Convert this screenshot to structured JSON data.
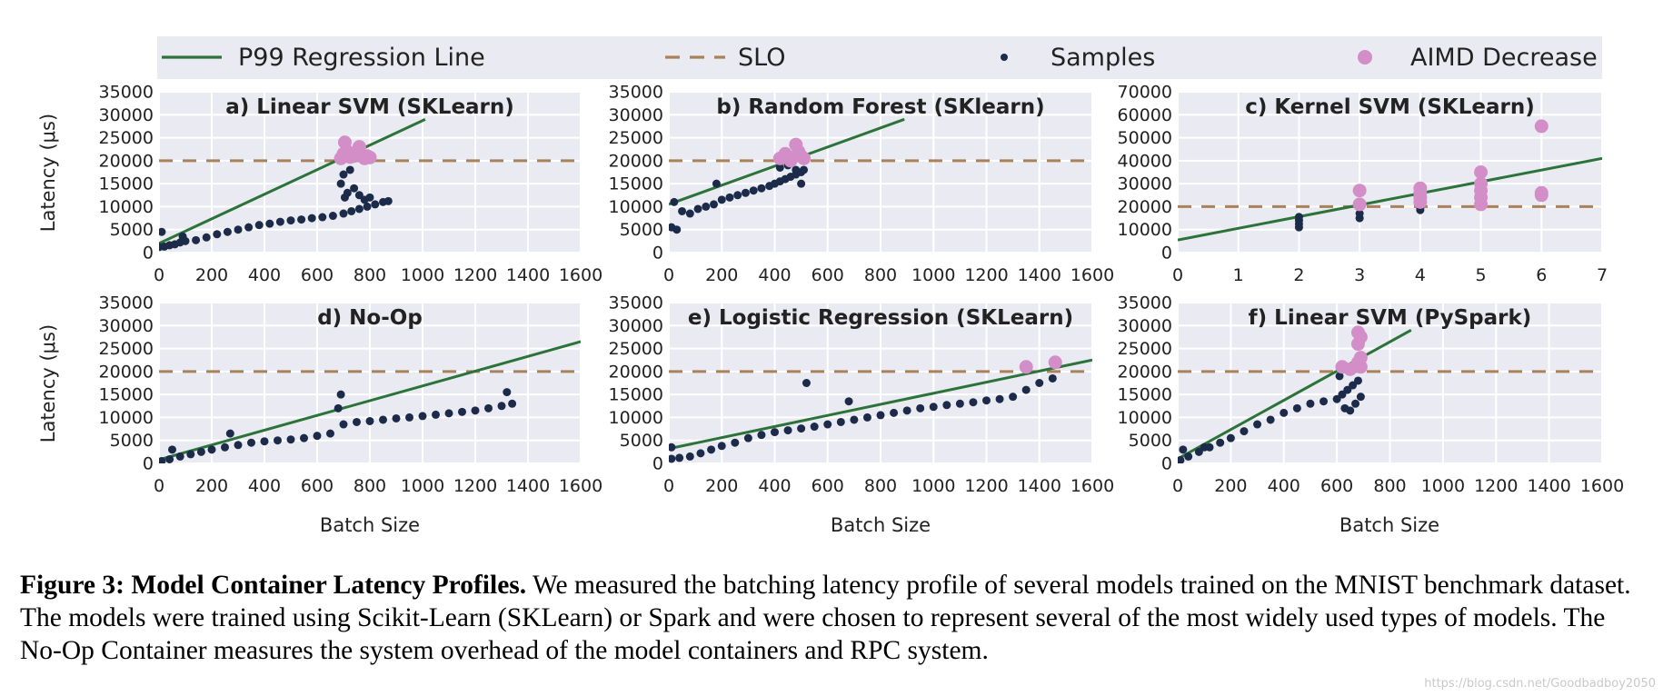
{
  "legend": {
    "items": [
      {
        "label": "P99 Regression Line",
        "kind": "line",
        "color": "#2b7339"
      },
      {
        "label": "SLO",
        "kind": "dash",
        "color": "#a9825a"
      },
      {
        "label": "Samples",
        "kind": "dot",
        "color": "#1c2b4a"
      },
      {
        "label": "AIMD Decrease",
        "kind": "bigdot",
        "color": "#d38ec8"
      }
    ]
  },
  "colors": {
    "panel_bg": "#eaeaf2",
    "grid": "#ffffff",
    "regression": "#2b7339",
    "slo": "#a9825a",
    "samples": "#1c2b4a",
    "aimd": "#d38ec8"
  },
  "shared": {
    "xlabel": "Batch Size",
    "ylabel": "Latency (μs)"
  },
  "chart_data": [
    {
      "id": "a",
      "type": "scatter",
      "title": "a) Linear SVM (SKLearn)",
      "xlim": [
        0,
        1600
      ],
      "ylim": [
        0,
        35000
      ],
      "xticks": [
        0,
        200,
        400,
        600,
        800,
        1000,
        1200,
        1400,
        1600
      ],
      "yticks": [
        0,
        5000,
        10000,
        15000,
        20000,
        25000,
        30000,
        35000
      ],
      "slo": 20000,
      "regression": [
        [
          0,
          2000
        ],
        [
          1010,
          29000
        ]
      ],
      "samples": [
        [
          0,
          1200
        ],
        [
          20,
          1300
        ],
        [
          40,
          1600
        ],
        [
          60,
          1800
        ],
        [
          80,
          2200
        ],
        [
          100,
          2500
        ],
        [
          140,
          2700
        ],
        [
          180,
          3300
        ],
        [
          220,
          4000
        ],
        [
          260,
          4500
        ],
        [
          300,
          5000
        ],
        [
          340,
          5500
        ],
        [
          380,
          6000
        ],
        [
          420,
          6300
        ],
        [
          460,
          6700
        ],
        [
          500,
          7000
        ],
        [
          540,
          7200
        ],
        [
          580,
          7500
        ],
        [
          620,
          7700
        ],
        [
          660,
          8000
        ],
        [
          700,
          8500
        ],
        [
          730,
          9000
        ],
        [
          760,
          9500
        ],
        [
          790,
          10000
        ],
        [
          820,
          10500
        ],
        [
          850,
          11000
        ],
        [
          870,
          11200
        ],
        [
          10,
          4500
        ],
        [
          90,
          3500
        ],
        [
          690,
          15000
        ],
        [
          700,
          17000
        ],
        [
          705,
          12000
        ],
        [
          715,
          13000
        ],
        [
          725,
          18000
        ],
        [
          740,
          14000
        ],
        [
          760,
          12500
        ],
        [
          780,
          11500
        ],
        [
          800,
          12000
        ]
      ],
      "aimd": [
        [
          690,
          20500
        ],
        [
          700,
          21500
        ],
        [
          705,
          24000
        ],
        [
          715,
          22000
        ],
        [
          725,
          20800
        ],
        [
          740,
          21000
        ],
        [
          760,
          23000
        ],
        [
          780,
          20500
        ],
        [
          790,
          21000
        ],
        [
          800,
          20700
        ]
      ]
    },
    {
      "id": "b",
      "type": "scatter",
      "title": "b) Random Forest (SKlearn)",
      "xlim": [
        0,
        1600
      ],
      "ylim": [
        0,
        35000
      ],
      "xticks": [
        0,
        200,
        400,
        600,
        800,
        1000,
        1200,
        1400,
        1600
      ],
      "yticks": [
        0,
        5000,
        10000,
        15000,
        20000,
        25000,
        30000,
        35000
      ],
      "slo": 20000,
      "regression": [
        [
          0,
          10500
        ],
        [
          890,
          29000
        ]
      ],
      "samples": [
        [
          10,
          5500
        ],
        [
          30,
          5000
        ],
        [
          50,
          9000
        ],
        [
          80,
          8500
        ],
        [
          110,
          9500
        ],
        [
          140,
          10000
        ],
        [
          170,
          10500
        ],
        [
          200,
          11500
        ],
        [
          230,
          12000
        ],
        [
          260,
          12500
        ],
        [
          290,
          13000
        ],
        [
          320,
          13500
        ],
        [
          350,
          14000
        ],
        [
          380,
          14500
        ],
        [
          400,
          15000
        ],
        [
          420,
          15500
        ],
        [
          440,
          16000
        ],
        [
          460,
          16500
        ],
        [
          480,
          17000
        ],
        [
          500,
          17500
        ],
        [
          510,
          18000
        ],
        [
          420,
          18500
        ],
        [
          450,
          19000
        ],
        [
          480,
          18000
        ],
        [
          500,
          15000
        ],
        [
          180,
          15000
        ],
        [
          20,
          11000
        ]
      ],
      "aimd": [
        [
          420,
          20500
        ],
        [
          440,
          21500
        ],
        [
          460,
          20000
        ],
        [
          480,
          23500
        ],
        [
          490,
          22000
        ],
        [
          500,
          21000
        ],
        [
          510,
          20500
        ]
      ]
    },
    {
      "id": "c",
      "type": "scatter",
      "title": "c) Kernel SVM (SKLearn)",
      "xlim": [
        0,
        7
      ],
      "ylim": [
        0,
        70000
      ],
      "xticks": [
        0,
        1,
        2,
        3,
        4,
        5,
        6,
        7
      ],
      "yticks": [
        0,
        10000,
        20000,
        30000,
        40000,
        50000,
        60000,
        70000
      ],
      "slo": 20000,
      "regression": [
        [
          0,
          5500
        ],
        [
          7,
          41000
        ]
      ],
      "samples": [
        [
          2,
          11000
        ],
        [
          2,
          12500
        ],
        [
          2,
          14000
        ],
        [
          2,
          15500
        ],
        [
          3,
          15000
        ],
        [
          3,
          17000
        ],
        [
          4,
          18500
        ],
        [
          4,
          19500
        ]
      ],
      "aimd": [
        [
          3,
          21000
        ],
        [
          3,
          27000
        ],
        [
          4,
          22000
        ],
        [
          4,
          24000
        ],
        [
          4,
          26000
        ],
        [
          4,
          28000
        ],
        [
          5,
          21000
        ],
        [
          5,
          24000
        ],
        [
          5,
          27000
        ],
        [
          5,
          30000
        ],
        [
          5,
          35000
        ],
        [
          6,
          25000
        ],
        [
          6,
          26000
        ],
        [
          6,
          55000
        ]
      ]
    },
    {
      "id": "d",
      "type": "scatter",
      "title": "d) No-Op",
      "xlim": [
        0,
        1600
      ],
      "ylim": [
        0,
        35000
      ],
      "xticks": [
        0,
        200,
        400,
        600,
        800,
        1000,
        1200,
        1400,
        1600
      ],
      "yticks": [
        0,
        5000,
        10000,
        15000,
        20000,
        25000,
        30000,
        35000
      ],
      "slo": 20000,
      "regression": [
        [
          0,
          800
        ],
        [
          1600,
          26500
        ]
      ],
      "samples": [
        [
          10,
          500
        ],
        [
          40,
          900
        ],
        [
          80,
          1500
        ],
        [
          120,
          2000
        ],
        [
          160,
          2500
        ],
        [
          200,
          3000
        ],
        [
          250,
          3500
        ],
        [
          300,
          4000
        ],
        [
          350,
          4500
        ],
        [
          400,
          4800
        ],
        [
          450,
          5000
        ],
        [
          500,
          5200
        ],
        [
          550,
          5500
        ],
        [
          600,
          6000
        ],
        [
          650,
          6500
        ],
        [
          700,
          8500
        ],
        [
          750,
          9000
        ],
        [
          800,
          9200
        ],
        [
          850,
          9500
        ],
        [
          900,
          9800
        ],
        [
          950,
          10000
        ],
        [
          1000,
          10300
        ],
        [
          1050,
          10600
        ],
        [
          1100,
          10900
        ],
        [
          1150,
          11200
        ],
        [
          1200,
          11500
        ],
        [
          1250,
          12000
        ],
        [
          1300,
          12500
        ],
        [
          1340,
          13000
        ],
        [
          1320,
          15500
        ],
        [
          50,
          3000
        ],
        [
          270,
          6500
        ],
        [
          690,
          15000
        ],
        [
          680,
          12000
        ]
      ],
      "aimd": []
    },
    {
      "id": "e",
      "type": "scatter",
      "title": "e) Logistic Regression (SKLearn)",
      "xlim": [
        0,
        1600
      ],
      "ylim": [
        0,
        35000
      ],
      "xticks": [
        0,
        200,
        400,
        600,
        800,
        1000,
        1200,
        1400,
        1600
      ],
      "yticks": [
        0,
        5000,
        10000,
        15000,
        20000,
        25000,
        30000,
        35000
      ],
      "slo": 20000,
      "regression": [
        [
          0,
          3200
        ],
        [
          1600,
          22500
        ]
      ],
      "samples": [
        [
          10,
          1000
        ],
        [
          40,
          1200
        ],
        [
          80,
          1500
        ],
        [
          120,
          2200
        ],
        [
          160,
          3000
        ],
        [
          200,
          3800
        ],
        [
          250,
          4500
        ],
        [
          300,
          5500
        ],
        [
          350,
          6200
        ],
        [
          400,
          6800
        ],
        [
          450,
          7200
        ],
        [
          500,
          7600
        ],
        [
          550,
          8000
        ],
        [
          600,
          8500
        ],
        [
          650,
          9000
        ],
        [
          700,
          9500
        ],
        [
          750,
          10000
        ],
        [
          800,
          10500
        ],
        [
          850,
          11000
        ],
        [
          900,
          11500
        ],
        [
          950,
          12000
        ],
        [
          1000,
          12300
        ],
        [
          1050,
          12700
        ],
        [
          1100,
          13000
        ],
        [
          1150,
          13300
        ],
        [
          1200,
          13700
        ],
        [
          1250,
          14000
        ],
        [
          1300,
          14500
        ],
        [
          1350,
          16000
        ],
        [
          1400,
          17500
        ],
        [
          1450,
          18500
        ],
        [
          10,
          3500
        ],
        [
          520,
          17500
        ],
        [
          680,
          13500
        ]
      ],
      "aimd": [
        [
          1350,
          21000
        ],
        [
          1460,
          22000
        ]
      ]
    },
    {
      "id": "f",
      "type": "scatter",
      "title": "f) Linear SVM (PySpark)",
      "xlim": [
        0,
        1600
      ],
      "ylim": [
        0,
        35000
      ],
      "xticks": [
        0,
        200,
        400,
        600,
        800,
        1000,
        1200,
        1400,
        1600
      ],
      "yticks": [
        0,
        5000,
        10000,
        15000,
        20000,
        25000,
        30000,
        35000
      ],
      "slo": 20000,
      "regression": [
        [
          0,
          1000
        ],
        [
          880,
          29000
        ]
      ],
      "samples": [
        [
          10,
          700
        ],
        [
          40,
          1500
        ],
        [
          80,
          2500
        ],
        [
          120,
          3500
        ],
        [
          160,
          4500
        ],
        [
          200,
          5500
        ],
        [
          250,
          7000
        ],
        [
          300,
          8500
        ],
        [
          350,
          9500
        ],
        [
          400,
          11000
        ],
        [
          450,
          12000
        ],
        [
          500,
          13000
        ],
        [
          550,
          13500
        ],
        [
          600,
          14000
        ],
        [
          620,
          15000
        ],
        [
          640,
          16000
        ],
        [
          660,
          17000
        ],
        [
          680,
          18000
        ],
        [
          630,
          12000
        ],
        [
          650,
          11500
        ],
        [
          670,
          13000
        ],
        [
          690,
          14500
        ],
        [
          20,
          3000
        ],
        [
          100,
          3500
        ],
        [
          610,
          19000
        ]
      ],
      "aimd": [
        [
          620,
          21000
        ],
        [
          650,
          20500
        ],
        [
          680,
          28500
        ],
        [
          690,
          27500
        ],
        [
          680,
          26000
        ],
        [
          690,
          23000
        ],
        [
          680,
          22000
        ],
        [
          690,
          21000
        ]
      ]
    }
  ],
  "caption": {
    "label": "Figure 3: Model Container Latency Profiles.",
    "text": " We measured the batching latency profile of several models trained on the MNIST benchmark dataset. The models were trained using Scikit-Learn (SKLearn) or Spark and were chosen to represent several of the most widely used types of models. The No-Op Container measures the system overhead of the model containers and RPC system."
  },
  "watermark": "https://blog.csdn.net/Goodbadboy2050"
}
